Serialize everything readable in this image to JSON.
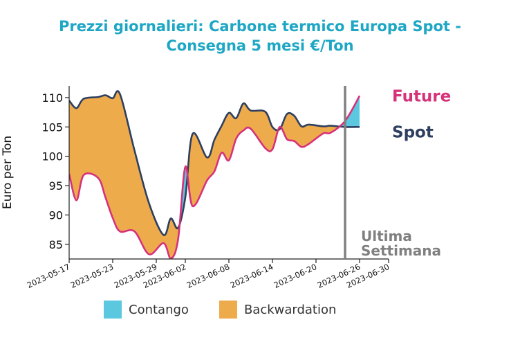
{
  "title_line1": "Prezzi giornalieri: Carbone termico Europa Spot -",
  "title_line2": "Consegna 5 mesi €/Ton",
  "chart_data": {
    "type": "area",
    "ylabel": "Euro per Ton",
    "ylim": [
      82.5,
      112
    ],
    "yticks": [
      85,
      90,
      95,
      100,
      105,
      110
    ],
    "x_start": "2023-05-17",
    "x_end": "2023-06-30",
    "xticks": [
      "2023-05-17",
      "2023-05-23",
      "2023-05-29",
      "2023-06-02",
      "2023-06-08",
      "2023-06-14",
      "2023-06-20",
      "2023-06-26",
      "2023-06-30"
    ],
    "series": [
      {
        "name": "Spot",
        "color": "#2e3f5f",
        "points": [
          [
            "2023-05-17",
            109.5
          ],
          [
            "2023-05-18",
            108.2
          ],
          [
            "2023-05-19",
            109.8
          ],
          [
            "2023-05-21",
            110.1
          ],
          [
            "2023-05-22",
            110.4
          ],
          [
            "2023-05-23",
            109.9
          ],
          [
            "2023-05-24",
            110.6
          ],
          [
            "2023-05-26",
            101.0
          ],
          [
            "2023-05-28",
            92.0
          ],
          [
            "2023-05-30",
            86.6
          ],
          [
            "2023-05-31",
            89.4
          ],
          [
            "2023-06-01",
            87.8
          ],
          [
            "2023-06-02",
            93.0
          ],
          [
            "2023-06-03",
            103.8
          ],
          [
            "2023-06-05",
            99.8
          ],
          [
            "2023-06-06",
            102.8
          ],
          [
            "2023-06-07",
            105.2
          ],
          [
            "2023-06-08",
            107.4
          ],
          [
            "2023-06-09",
            106.5
          ],
          [
            "2023-06-10",
            109.0
          ],
          [
            "2023-06-11",
            107.8
          ],
          [
            "2023-06-13",
            107.6
          ],
          [
            "2023-06-14",
            105.0
          ],
          [
            "2023-06-15",
            104.6
          ],
          [
            "2023-06-16",
            107.2
          ],
          [
            "2023-06-17",
            106.9
          ],
          [
            "2023-06-18",
            105.1
          ],
          [
            "2023-06-19",
            105.4
          ],
          [
            "2023-06-21",
            105.1
          ],
          [
            "2023-06-22",
            105.2
          ],
          [
            "2023-06-24",
            105.0
          ],
          [
            "2023-06-26",
            105.0
          ]
        ]
      },
      {
        "name": "Future",
        "color": "#d6327a",
        "points": [
          [
            "2023-05-17",
            97.0
          ],
          [
            "2023-05-18",
            92.5
          ],
          [
            "2023-05-19",
            96.8
          ],
          [
            "2023-05-21",
            96.3
          ],
          [
            "2023-05-22",
            93.0
          ],
          [
            "2023-05-23",
            89.5
          ],
          [
            "2023-05-24",
            87.2
          ],
          [
            "2023-05-26",
            87.2
          ],
          [
            "2023-05-28",
            83.3
          ],
          [
            "2023-05-30",
            85.2
          ],
          [
            "2023-05-31",
            82.6
          ],
          [
            "2023-06-01",
            85.8
          ],
          [
            "2023-06-02",
            98.2
          ],
          [
            "2023-06-03",
            91.5
          ],
          [
            "2023-06-05",
            95.9
          ],
          [
            "2023-06-06",
            97.4
          ],
          [
            "2023-06-07",
            100.6
          ],
          [
            "2023-06-08",
            99.3
          ],
          [
            "2023-06-09",
            103.0
          ],
          [
            "2023-06-10",
            104.4
          ],
          [
            "2023-06-11",
            104.7
          ],
          [
            "2023-06-13",
            101.4
          ],
          [
            "2023-06-14",
            101.2
          ],
          [
            "2023-06-15",
            105.0
          ],
          [
            "2023-06-16",
            102.9
          ],
          [
            "2023-06-17",
            102.6
          ],
          [
            "2023-06-18",
            101.6
          ],
          [
            "2023-06-19",
            102.1
          ],
          [
            "2023-06-21",
            103.9
          ],
          [
            "2023-06-22",
            104.0
          ],
          [
            "2023-06-24",
            106.0
          ],
          [
            "2023-06-26",
            110.3
          ]
        ]
      }
    ],
    "fill_colors": {
      "Contango": "#5bc8e0",
      "Backwardation": "#edab4c"
    },
    "legend": [
      "Contango",
      "Backwardation"
    ],
    "vline": {
      "date": "2023-06-24",
      "label_line1": "Ultima",
      "label_line2": "Settimana",
      "color": "#808080"
    }
  }
}
